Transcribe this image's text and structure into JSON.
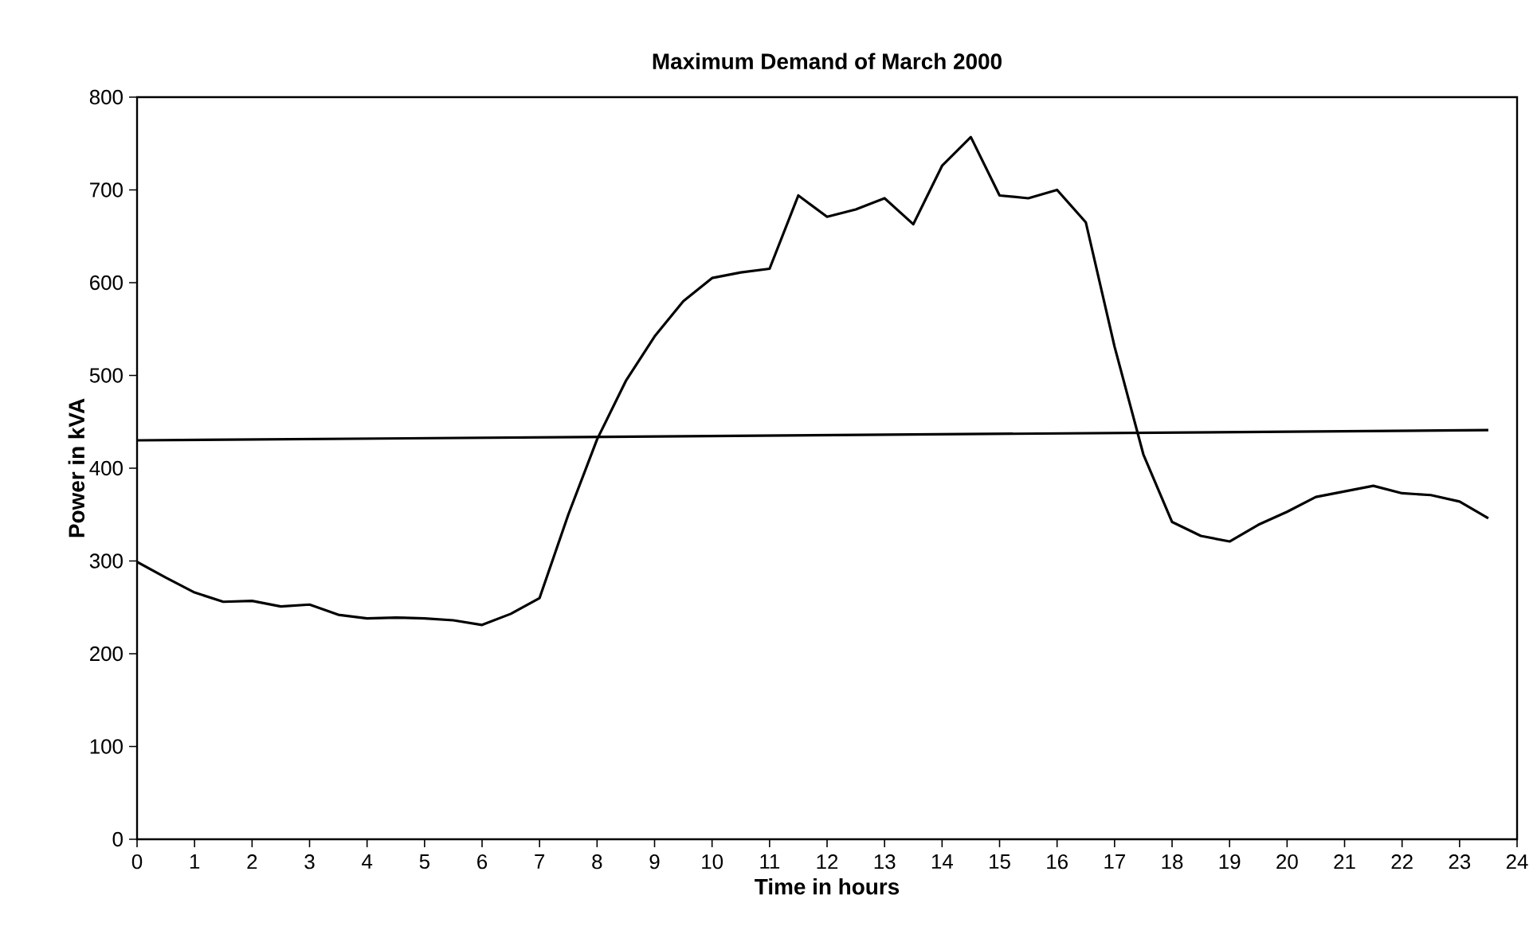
{
  "chart_data": {
    "type": "line",
    "title": "Maximum Demand of March 2000",
    "xlabel": "Time in hours",
    "ylabel": "Power in kVA",
    "x": [
      0,
      0.5,
      1,
      1.5,
      2,
      2.5,
      3,
      3.5,
      4,
      4.5,
      5,
      5.5,
      6,
      6.5,
      7,
      7.5,
      8,
      8.5,
      9,
      9.5,
      10,
      10.5,
      11,
      11.5,
      12,
      12.5,
      13,
      13.5,
      14,
      14.5,
      15,
      15.5,
      16,
      16.5,
      17,
      17.5,
      18,
      18.5,
      19,
      19.5,
      20,
      20.5,
      21,
      21.5,
      22,
      22.5,
      23,
      23.5
    ],
    "series": [
      {
        "color": "#000000",
        "values": [
          299,
          282,
          266,
          256,
          257,
          251,
          253,
          242,
          238,
          239,
          238,
          236,
          231,
          243,
          260,
          350,
          431,
          494,
          542,
          580,
          605,
          611,
          615,
          694,
          671,
          679,
          691,
          663,
          726,
          757,
          694,
          691,
          700,
          665,
          531,
          415,
          342,
          327,
          321,
          339,
          353,
          369,
          375,
          381,
          373,
          371,
          364,
          346
        ]
      },
      {
        "color": "#000000",
        "x": [
          0,
          23.5
        ],
        "values": [
          430,
          441
        ]
      }
    ],
    "xlim": [
      0,
      24
    ],
    "xticks": [
      0,
      1,
      2,
      3,
      4,
      5,
      6,
      7,
      8,
      9,
      10,
      11,
      12,
      13,
      14,
      15,
      16,
      17,
      18,
      19,
      20,
      21,
      22,
      23,
      24
    ],
    "ylim": [
      0,
      800
    ],
    "yticks": [
      0,
      100,
      200,
      300,
      400,
      500,
      600,
      700,
      800
    ],
    "grid": false,
    "marker": "none",
    "line_style": "solid"
  }
}
